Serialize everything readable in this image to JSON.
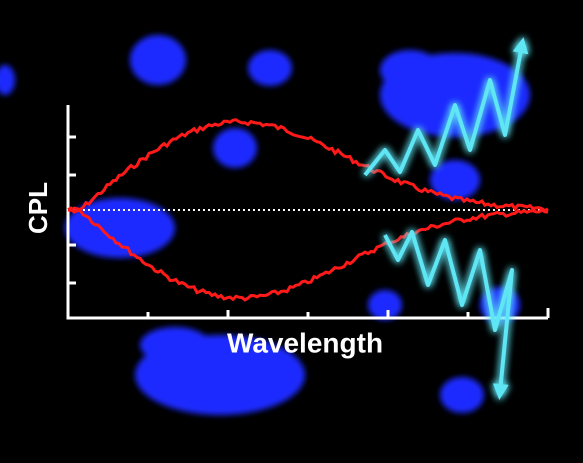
{
  "axes": {
    "y_label": "CPL",
    "x_label": "Wavelength"
  }
}
